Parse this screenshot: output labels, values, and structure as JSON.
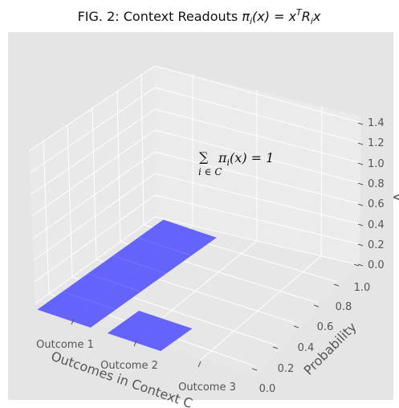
{
  "chart_data": {
    "type": "bar3d",
    "title_main": "FIG. 2: Context Readouts ",
    "title_math": "π",
    "title_sub": "i",
    "title_rest": "(x) = x",
    "title_sup": "T",
    "title_R": "R",
    "title_Rsub": "i",
    "title_end": "x",
    "xlabel": "Outcomes in Context C",
    "ylabel": "Probability",
    "zlabel": "V",
    "categories": [
      "Outcome 1",
      "Outcome 2",
      "Outcome 3"
    ],
    "y_ticks": [
      "0.0",
      "0.2",
      "0.4",
      "0.6",
      "0.8",
      "1.0"
    ],
    "z_ticks": [
      "0.0",
      "0.2",
      "0.4",
      "0.6",
      "0.8",
      "1.0",
      "1.2",
      "1.4"
    ],
    "bars": [
      {
        "category": "Outcome 1",
        "probability_extent": [
          0.0,
          1.0
        ],
        "height": 0.0
      },
      {
        "category": "Outcome 2",
        "probability_extent": [
          0.0,
          0.25
        ],
        "height": 0.0
      }
    ],
    "bar_color": "#5555ff",
    "annotation": {
      "sum_symbol": "∑",
      "sum_index": "i ∈ C",
      "expr": "π",
      "expr_sub": "i",
      "expr_rest": "(x) = 1"
    },
    "grid": true,
    "background": "#e5e5e5"
  }
}
